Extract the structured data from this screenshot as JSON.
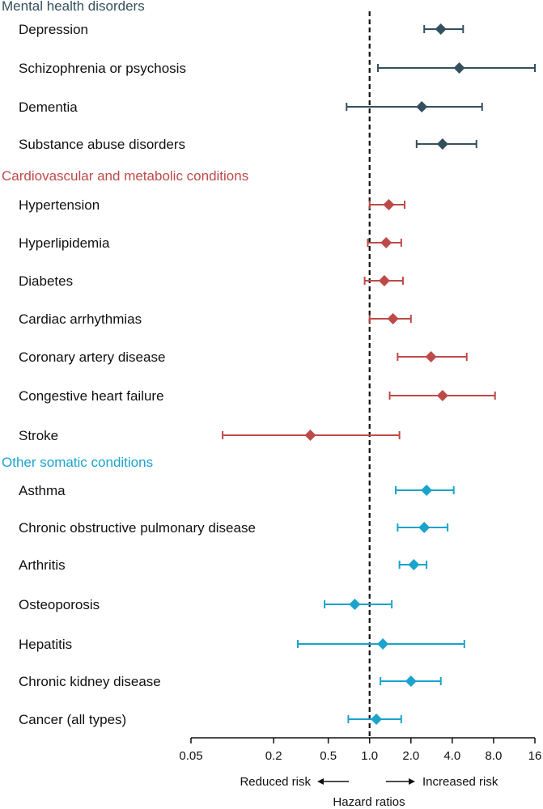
{
  "colors": {
    "mental": "#34505e",
    "cardio": "#be4a48",
    "somatic": "#1ba3cc",
    "reference": "#111111"
  },
  "chart_data": {
    "type": "forest",
    "x_scale": "log2",
    "xlim": [
      0.05,
      16
    ],
    "reference_line": 1.0,
    "xlabel": "Hazard ratios",
    "direction_left": "Reduced risk",
    "direction_right": "Increased risk",
    "x_ticks": [
      {
        "value": 0.05,
        "label": "0.05"
      },
      {
        "value": 0.2,
        "label": "0.2"
      },
      {
        "value": 0.5,
        "label": "0.5"
      },
      {
        "value": 1.0,
        "label": "1.0"
      },
      {
        "value": 2.0,
        "label": "2.0"
      },
      {
        "value": 4.0,
        "label": "4.0"
      },
      {
        "value": 8.0,
        "label": "8.0"
      },
      {
        "value": 16,
        "label": "16"
      }
    ],
    "groups": [
      {
        "name": "Mental health disorders",
        "color_key": "mental",
        "rows": [
          {
            "label": "Depression",
            "hr": 3.3,
            "lo": 2.5,
            "hi": 4.8
          },
          {
            "label": "Schizophrenia or psychosis",
            "hr": 4.5,
            "lo": 1.15,
            "hi": 16.0
          },
          {
            "label": "Dementia",
            "hr": 2.4,
            "lo": 0.68,
            "hi": 6.6
          },
          {
            "label": "Substance abuse disorders",
            "hr": 3.4,
            "lo": 2.2,
            "hi": 6.0
          }
        ]
      },
      {
        "name": "Cardiovascular and metabolic conditions",
        "color_key": "cardio",
        "rows": [
          {
            "label": "Hypertension",
            "hr": 1.38,
            "lo": 1.0,
            "hi": 1.8
          },
          {
            "label": "Hyperlipidemia",
            "hr": 1.32,
            "lo": 0.97,
            "hi": 1.7
          },
          {
            "label": "Diabetes",
            "hr": 1.28,
            "lo": 0.92,
            "hi": 1.75
          },
          {
            "label": "Cardiac arrhythmias",
            "hr": 1.48,
            "lo": 1.0,
            "hi": 2.0
          },
          {
            "label": "Coronary artery disease",
            "hr": 2.8,
            "lo": 1.6,
            "hi": 5.1
          },
          {
            "label": "Congestive heart failure",
            "hr": 3.4,
            "lo": 1.4,
            "hi": 8.2
          },
          {
            "label": "Stroke",
            "hr": 0.37,
            "lo": 0.085,
            "hi": 1.65
          }
        ]
      },
      {
        "name": "Other somatic conditions",
        "color_key": "somatic",
        "rows": [
          {
            "label": "Asthma",
            "hr": 2.6,
            "lo": 1.55,
            "hi": 4.1
          },
          {
            "label": "Chronic obstructive pulmonary disease",
            "hr": 2.5,
            "lo": 1.6,
            "hi": 3.7
          },
          {
            "label": "Arthritis",
            "hr": 2.1,
            "lo": 1.65,
            "hi": 2.6
          },
          {
            "label": "Osteoporosis",
            "hr": 0.78,
            "lo": 0.47,
            "hi": 1.45
          },
          {
            "label": "Hepatitis",
            "hr": 1.25,
            "lo": 0.3,
            "hi": 4.9
          },
          {
            "label": "Chronic kidney disease",
            "hr": 2.0,
            "lo": 1.2,
            "hi": 3.3
          },
          {
            "label": "Cancer (all types)",
            "hr": 1.12,
            "lo": 0.7,
            "hi": 1.7
          }
        ]
      }
    ]
  }
}
